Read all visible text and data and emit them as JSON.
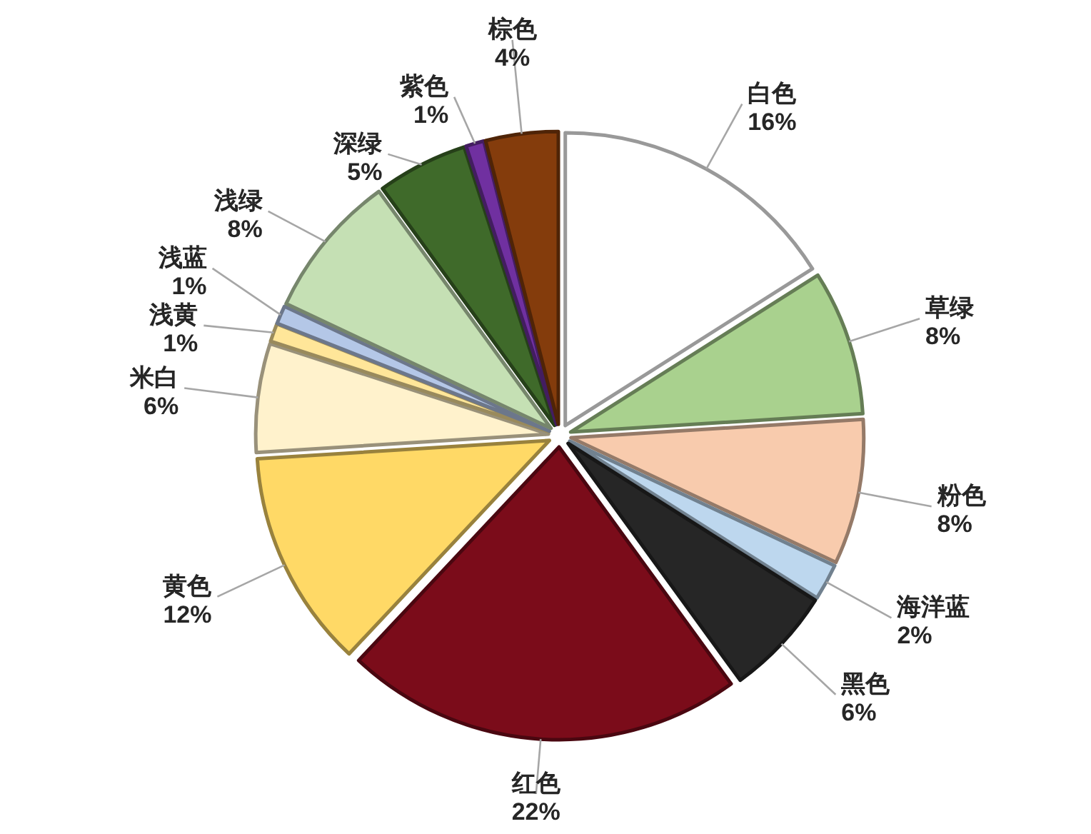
{
  "chart_data": {
    "type": "pie",
    "categories": [
      "白色",
      "草绿",
      "粉色",
      "海洋蓝",
      "黑色",
      "红色",
      "黄色",
      "米白",
      "浅黄",
      "浅蓝",
      "浅绿",
      "深绿",
      "紫色",
      "棕色"
    ],
    "values": [
      16,
      8,
      8,
      2,
      6,
      22,
      12,
      6,
      1,
      1,
      8,
      5,
      1,
      4
    ],
    "value_labels": [
      "16%",
      "8%",
      "8%",
      "2%",
      "6%",
      "22%",
      "12%",
      "6%",
      "1%",
      "1%",
      "8%",
      "5%",
      "1%",
      "4%"
    ],
    "colors": [
      "#ffffff",
      "#a9d18e",
      "#f8cbad",
      "#bdd7ee",
      "#262626",
      "#7b0c1a",
      "#ffd966",
      "#fff2cc",
      "#ffe699",
      "#b4c7e7",
      "#c5e0b4",
      "#3f6a2a",
      "#7030a0",
      "#843c0c"
    ]
  }
}
